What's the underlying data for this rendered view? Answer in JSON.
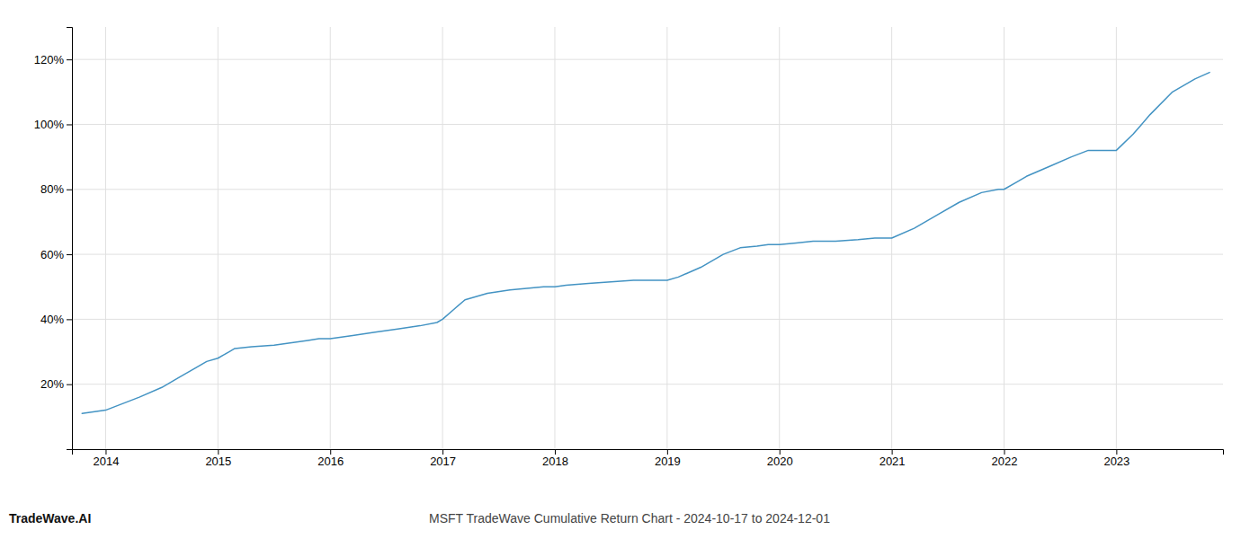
{
  "chart_data": {
    "type": "line",
    "title": "MSFT TradeWave Cumulative Return Chart - 2024-10-17 to 2024-12-01",
    "annotations": [
      "TradeWave.AI"
    ],
    "color": "#4393c3",
    "grid": true,
    "x": [
      2013.79,
      2014.0,
      2014.15,
      2014.3,
      2014.5,
      2014.65,
      2014.8,
      2014.9,
      2015.0,
      2015.05,
      2015.1,
      2015.15,
      2015.3,
      2015.5,
      2015.6,
      2015.7,
      2015.8,
      2015.9,
      2016.0,
      2016.1,
      2016.2,
      2016.4,
      2016.6,
      2016.8,
      2016.95,
      2017.0,
      2017.1,
      2017.2,
      2017.4,
      2017.6,
      2017.75,
      2017.9,
      2018.0,
      2018.1,
      2018.3,
      2018.5,
      2018.7,
      2018.9,
      2019.0,
      2019.1,
      2019.3,
      2019.5,
      2019.65,
      2019.8,
      2019.9,
      2020.0,
      2020.15,
      2020.3,
      2020.5,
      2020.7,
      2020.85,
      2020.95,
      2021.0,
      2021.2,
      2021.4,
      2021.6,
      2021.8,
      2021.95,
      2022.0,
      2022.1,
      2022.2,
      2022.4,
      2022.6,
      2022.75,
      2022.9,
      2023.0,
      2023.15,
      2023.3,
      2023.5,
      2023.7,
      2023.83
    ],
    "values": [
      11,
      12,
      14,
      16,
      19,
      22,
      25,
      27,
      28,
      29,
      30,
      31,
      31.5,
      32,
      32.5,
      33,
      33.5,
      34,
      34,
      34.5,
      35,
      36,
      37,
      38,
      39,
      40,
      43,
      46,
      48,
      49,
      49.5,
      50,
      50,
      50.5,
      51,
      51.5,
      52,
      52,
      52,
      53,
      56,
      60,
      62,
      62.5,
      63,
      63,
      63.5,
      64,
      64,
      64.5,
      65,
      65,
      65,
      68,
      72,
      76,
      79,
      80,
      80,
      82,
      84,
      87,
      90,
      92,
      92,
      92,
      97,
      103,
      110,
      114,
      116
    ],
    "xlim": [
      2013.7,
      2023.95
    ],
    "xticks": [
      2014,
      2015,
      2016,
      2017,
      2018,
      2019,
      2020,
      2021,
      2022,
      2023
    ],
    "ylim": [
      0,
      130
    ],
    "yticks": [
      {
        "value": 20,
        "label": "20%"
      },
      {
        "value": 40,
        "label": "40%"
      },
      {
        "value": 60,
        "label": "60%"
      },
      {
        "value": 80,
        "label": "80%"
      },
      {
        "value": 100,
        "label": "100%"
      },
      {
        "value": 120,
        "label": "120%"
      }
    ]
  }
}
